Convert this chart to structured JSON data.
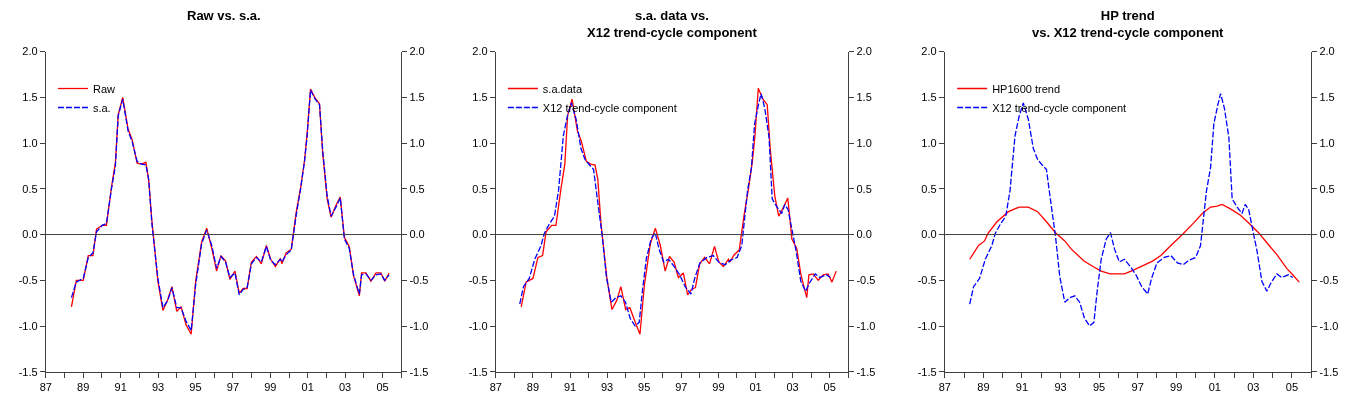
{
  "chart_data": [
    {
      "type": "line",
      "title": "Raw vs. s.a.",
      "legend": "top left",
      "xlim": [
        1987,
        2006
      ],
      "ylim": [
        -1.5,
        2.0
      ],
      "y2lim": [
        -1.5,
        2.0
      ],
      "xticks": [
        {
          "value": 1987,
          "label": "87"
        },
        {
          "value": 1988,
          "label": null
        },
        {
          "value": 1989,
          "label": "89"
        },
        {
          "value": 1990,
          "label": null
        },
        {
          "value": 1991,
          "label": "91"
        },
        {
          "value": 1992,
          "label": null
        },
        {
          "value": 1993,
          "label": "93"
        },
        {
          "value": 1994,
          "label": null
        },
        {
          "value": 1995,
          "label": "95"
        },
        {
          "value": 1996,
          "label": null
        },
        {
          "value": 1997,
          "label": "97"
        },
        {
          "value": 1998,
          "label": null
        },
        {
          "value": 1999,
          "label": "99"
        },
        {
          "value": 2000,
          "label": null
        },
        {
          "value": 2001,
          "label": "01"
        },
        {
          "value": 2002,
          "label": null
        },
        {
          "value": 2003,
          "label": "03"
        },
        {
          "value": 2004,
          "label": null
        },
        {
          "value": 2005,
          "label": "05"
        },
        {
          "value": 2006,
          "label": null
        }
      ],
      "yticks": [
        {
          "value": -1.5,
          "label": "-1.5"
        },
        {
          "value": -1.0,
          "label": "-1.0"
        },
        {
          "value": -0.5,
          "label": "-0.5"
        },
        {
          "value": 0,
          "label": "0.0"
        },
        {
          "value": 0.5,
          "label": "0.5"
        },
        {
          "value": 1.0,
          "label": "1.0"
        },
        {
          "value": 1.5,
          "label": "1.5"
        },
        {
          "value": 2.0,
          "label": "2.0"
        }
      ],
      "y2ticks": [
        {
          "value": -1.5,
          "label": "-1.5"
        },
        {
          "value": -1.0,
          "label": "-1.0"
        },
        {
          "value": -0.5,
          "label": "-0.5"
        },
        {
          "value": 0,
          "label": "0.0"
        },
        {
          "value": 0.5,
          "label": "0.5"
        },
        {
          "value": 1.0,
          "label": "1.0"
        },
        {
          "value": 1.5,
          "label": "1.5"
        },
        {
          "value": 2.0,
          "label": "2.0"
        }
      ],
      "ref_lines": [
        {
          "axis": "y",
          "value": 0,
          "color": "#404040"
        }
      ],
      "series": [
        {
          "name": "Raw",
          "color": "#ff0000",
          "line_style": "solid",
          "x": [
            1988.37,
            1988.63,
            1989.0,
            1989.27,
            1989.52,
            1989.71,
            1990.01,
            1990.24,
            1990.51,
            1990.72,
            1990.87,
            1991.11,
            1991.4,
            1991.61,
            1991.88,
            1992.11,
            1992.35,
            1992.5,
            1992.67,
            1992.99,
            1993.26,
            1993.52,
            1993.74,
            1994.0,
            1994.23,
            1994.5,
            1994.77,
            1995.01,
            1995.33,
            1995.6,
            1995.87,
            1996.13,
            1996.36,
            1996.61,
            1996.84,
            1997.11,
            1997.34,
            1997.55,
            1997.76,
            1997.99,
            1998.26,
            1998.52,
            1998.79,
            1999.02,
            1999.27,
            1999.54,
            1999.62,
            1999.85,
            2000.12,
            2000.39,
            2000.62,
            2000.83,
            2000.97,
            2001.15,
            2001.4,
            2001.63,
            2001.8,
            2002.04,
            2002.25,
            2002.51,
            2002.74,
            2002.96,
            2003.22,
            2003.45,
            2003.76,
            2003.88,
            2004.11,
            2004.38,
            2004.65,
            2004.91,
            2005.12,
            2005.35
          ],
          "values": [
            -0.79,
            -0.5,
            -0.5,
            -0.23,
            -0.23,
            0.06,
            0.1,
            0.1,
            0.52,
            0.79,
            1.31,
            1.5,
            1.15,
            1.04,
            0.78,
            0.77,
            0.79,
            0.59,
            0.15,
            -0.51,
            -0.83,
            -0.71,
            -0.57,
            -0.84,
            -0.79,
            -0.99,
            -1.09,
            -0.51,
            -0.08,
            0.07,
            -0.15,
            -0.4,
            -0.23,
            -0.29,
            -0.49,
            -0.4,
            -0.64,
            -0.59,
            -0.59,
            -0.3,
            -0.24,
            -0.32,
            -0.12,
            -0.27,
            -0.35,
            -0.26,
            -0.32,
            -0.2,
            -0.16,
            0.25,
            0.51,
            0.81,
            1.11,
            1.59,
            1.49,
            1.43,
            0.89,
            0.39,
            0.19,
            0.32,
            0.41,
            -0.03,
            -0.13,
            -0.45,
            -0.67,
            -0.42,
            -0.42,
            -0.51,
            -0.42,
            -0.42,
            -0.51,
            -0.42
          ]
        },
        {
          "name": "s.a.",
          "color": "#0000ff",
          "line_style": "dashed",
          "x": [
            1988.37,
            1988.63,
            1989.0,
            1989.27,
            1989.52,
            1989.71,
            1990.01,
            1990.24,
            1990.51,
            1990.72,
            1990.87,
            1991.11,
            1991.4,
            1991.61,
            1991.88,
            1992.11,
            1992.35,
            1992.5,
            1992.67,
            1992.99,
            1993.26,
            1993.52,
            1993.74,
            1994.0,
            1994.23,
            1994.5,
            1994.77,
            1995.01,
            1995.33,
            1995.6,
            1995.87,
            1996.13,
            1996.36,
            1996.61,
            1996.84,
            1997.11,
            1997.34,
            1997.55,
            1997.76,
            1997.99,
            1998.26,
            1998.52,
            1998.79,
            1999.02,
            1999.27,
            1999.54,
            1999.62,
            1999.85,
            2000.12,
            2000.39,
            2000.62,
            2000.83,
            2000.97,
            2001.15,
            2001.4,
            2001.63,
            2001.8,
            2002.04,
            2002.25,
            2002.51,
            2002.74,
            2002.96,
            2003.22,
            2003.45,
            2003.76,
            2003.88,
            2004.11,
            2004.38,
            2004.65,
            2004.91,
            2005.12,
            2005.35
          ],
          "values": [
            -0.69,
            -0.52,
            -0.48,
            -0.25,
            -0.2,
            0.03,
            0.1,
            0.12,
            0.5,
            0.75,
            1.3,
            1.48,
            1.13,
            1.02,
            0.8,
            0.77,
            0.76,
            0.6,
            0.12,
            -0.48,
            -0.8,
            -0.72,
            -0.58,
            -0.8,
            -0.8,
            -0.95,
            -1.05,
            -0.55,
            -0.1,
            0.05,
            -0.12,
            -0.37,
            -0.24,
            -0.3,
            -0.47,
            -0.42,
            -0.66,
            -0.6,
            -0.58,
            -0.32,
            -0.25,
            -0.3,
            -0.13,
            -0.28,
            -0.33,
            -0.27,
            -0.3,
            -0.22,
            -0.17,
            0.22,
            0.5,
            0.8,
            1.08,
            1.58,
            1.48,
            1.42,
            0.92,
            0.42,
            0.2,
            0.3,
            0.4,
            -0.05,
            -0.15,
            -0.44,
            -0.65,
            -0.44,
            -0.43,
            -0.5,
            -0.44,
            -0.43,
            -0.5,
            -0.44
          ]
        }
      ]
    },
    {
      "type": "line",
      "title": "s.a. data vs.\nX12 trend-cycle component",
      "legend": "top left",
      "xlim": [
        1987,
        2006
      ],
      "ylim": [
        -1.5,
        2.0
      ],
      "y2lim": [
        -1.5,
        2.0
      ],
      "xticks": [
        {
          "value": 1987,
          "label": "87"
        },
        {
          "value": 1988,
          "label": null
        },
        {
          "value": 1989,
          "label": "89"
        },
        {
          "value": 1990,
          "label": null
        },
        {
          "value": 1991,
          "label": "91"
        },
        {
          "value": 1992,
          "label": null
        },
        {
          "value": 1993,
          "label": "93"
        },
        {
          "value": 1994,
          "label": null
        },
        {
          "value": 1995,
          "label": "95"
        },
        {
          "value": 1996,
          "label": null
        },
        {
          "value": 1997,
          "label": "97"
        },
        {
          "value": 1998,
          "label": null
        },
        {
          "value": 1999,
          "label": "99"
        },
        {
          "value": 2000,
          "label": null
        },
        {
          "value": 2001,
          "label": "01"
        },
        {
          "value": 2002,
          "label": null
        },
        {
          "value": 2003,
          "label": "03"
        },
        {
          "value": 2004,
          "label": null
        },
        {
          "value": 2005,
          "label": "05"
        },
        {
          "value": 2006,
          "label": null
        }
      ],
      "yticks": [
        {
          "value": -1.5,
          "label": "-1.5"
        },
        {
          "value": -1.0,
          "label": "-1.0"
        },
        {
          "value": -0.5,
          "label": "-0.5"
        },
        {
          "value": 0,
          "label": "0.0"
        },
        {
          "value": 0.5,
          "label": "0.5"
        },
        {
          "value": 1.0,
          "label": "1.0"
        },
        {
          "value": 1.5,
          "label": "1.5"
        },
        {
          "value": 2.0,
          "label": "2.0"
        }
      ],
      "y2ticks": [
        {
          "value": -1.5,
          "label": "-1.5"
        },
        {
          "value": -1.0,
          "label": "-1.0"
        },
        {
          "value": -0.5,
          "label": "-0.5"
        },
        {
          "value": 0,
          "label": "0.0"
        },
        {
          "value": 0.5,
          "label": "0.5"
        },
        {
          "value": 1.0,
          "label": "1.0"
        },
        {
          "value": 1.5,
          "label": "1.5"
        },
        {
          "value": 2.0,
          "label": "2.0"
        }
      ],
      "ref_lines": [
        {
          "axis": "y",
          "value": 0,
          "color": "#404040"
        }
      ],
      "series": [
        {
          "name": "s.a.data",
          "color": "#ff0000",
          "line_style": "solid",
          "x": [
            1988.37,
            1988.63,
            1989.0,
            1989.27,
            1989.52,
            1989.71,
            1990.01,
            1990.24,
            1990.51,
            1990.72,
            1990.87,
            1991.11,
            1991.4,
            1991.61,
            1991.88,
            1992.11,
            1992.35,
            1992.5,
            1992.67,
            1992.99,
            1993.26,
            1993.52,
            1993.74,
            1994.0,
            1994.23,
            1994.5,
            1994.77,
            1995.01,
            1995.33,
            1995.6,
            1995.87,
            1996.13,
            1996.36,
            1996.61,
            1996.84,
            1997.11,
            1997.34,
            1997.55,
            1997.76,
            1997.99,
            1998.26,
            1998.52,
            1998.79,
            1999.02,
            1999.27,
            1999.54,
            1999.62,
            1999.85,
            2000.12,
            2000.39,
            2000.62,
            2000.83,
            2000.97,
            2001.15,
            2001.4,
            2001.63,
            2001.8,
            2002.04,
            2002.25,
            2002.51,
            2002.74,
            2002.96,
            2003.22,
            2003.45,
            2003.76,
            2003.88,
            2004.11,
            2004.38,
            2004.65,
            2004.91,
            2005.12,
            2005.35
          ],
          "values": [
            -0.79,
            -0.52,
            -0.48,
            -0.25,
            -0.23,
            0.03,
            0.1,
            0.1,
            0.5,
            0.77,
            1.3,
            1.48,
            1.13,
            1.02,
            0.8,
            0.77,
            0.76,
            0.6,
            0.12,
            -0.48,
            -0.82,
            -0.72,
            -0.57,
            -0.82,
            -0.8,
            -0.95,
            -1.09,
            -0.55,
            -0.1,
            0.07,
            -0.12,
            -0.4,
            -0.24,
            -0.3,
            -0.47,
            -0.42,
            -0.66,
            -0.6,
            -0.58,
            -0.32,
            -0.25,
            -0.32,
            -0.13,
            -0.3,
            -0.35,
            -0.27,
            -0.3,
            -0.22,
            -0.17,
            0.22,
            0.5,
            0.8,
            1.08,
            1.6,
            1.48,
            1.42,
            0.92,
            0.42,
            0.2,
            0.3,
            0.4,
            -0.05,
            -0.15,
            -0.44,
            -0.69,
            -0.44,
            -0.43,
            -0.5,
            -0.44,
            -0.43,
            -0.52,
            -0.4
          ]
        },
        {
          "name": "X12 trend-cycle component",
          "color": "#0000ff",
          "line_style": "dashed",
          "x": [
            1988.29,
            1988.49,
            1988.8,
            1989.1,
            1989.44,
            1989.61,
            1989.87,
            1990.16,
            1990.38,
            1990.64,
            1990.85,
            1991.07,
            1991.33,
            1991.59,
            1991.81,
            1992.05,
            1992.27,
            1992.53,
            1992.74,
            1992.96,
            1993.22,
            1993.48,
            1993.74,
            1993.99,
            1994.25,
            1994.51,
            1994.73,
            1994.9,
            1995.11,
            1995.37,
            1995.59,
            1995.8,
            1996.05,
            1996.31,
            1996.62,
            1996.91,
            1997.21,
            1997.52,
            1997.72,
            1998.0,
            1998.38,
            1998.72,
            1999.06,
            1999.37,
            1999.66,
            2000.01,
            2000.26,
            2000.57,
            2000.78,
            2000.95,
            2001.16,
            2001.3,
            2001.5,
            2001.73,
            2001.9,
            2002.16,
            2002.41,
            2002.58,
            2002.76,
            2002.93,
            2003.19,
            2003.44,
            2003.7,
            2003.91,
            2004.22,
            2004.47,
            2004.82,
            2005.04
          ],
          "values": [
            -0.76,
            -0.57,
            -0.48,
            -0.27,
            -0.12,
            0.01,
            0.11,
            0.2,
            0.48,
            1.08,
            1.29,
            1.44,
            1.26,
            0.94,
            0.82,
            0.76,
            0.71,
            0.3,
            -0.02,
            -0.46,
            -0.74,
            -0.69,
            -0.67,
            -0.74,
            -0.92,
            -1.0,
            -0.96,
            -0.62,
            -0.27,
            -0.05,
            0.02,
            -0.16,
            -0.3,
            -0.27,
            -0.35,
            -0.44,
            -0.57,
            -0.65,
            -0.48,
            -0.31,
            -0.25,
            -0.23,
            -0.31,
            -0.33,
            -0.28,
            -0.25,
            -0.12,
            0.48,
            0.73,
            1.21,
            1.42,
            1.54,
            1.38,
            1.06,
            0.39,
            0.3,
            0.23,
            0.33,
            0.27,
            0.09,
            -0.18,
            -0.51,
            -0.62,
            -0.53,
            -0.43,
            -0.47,
            -0.44,
            -0.47
          ]
        }
      ]
    },
    {
      "type": "line",
      "title": "HP trend\nvs. X12 trend-cycle component",
      "legend": "top left",
      "xlim": [
        1987,
        2006
      ],
      "ylim": [
        -1.5,
        2.0
      ],
      "y2lim": [
        -1.5,
        2.0
      ],
      "xticks": [
        {
          "value": 1987,
          "label": "87"
        },
        {
          "value": 1988,
          "label": null
        },
        {
          "value": 1989,
          "label": "89"
        },
        {
          "value": 1990,
          "label": null
        },
        {
          "value": 1991,
          "label": "91"
        },
        {
          "value": 1992,
          "label": null
        },
        {
          "value": 1993,
          "label": "93"
        },
        {
          "value": 1994,
          "label": null
        },
        {
          "value": 1995,
          "label": "95"
        },
        {
          "value": 1996,
          "label": null
        },
        {
          "value": 1997,
          "label": "97"
        },
        {
          "value": 1998,
          "label": null
        },
        {
          "value": 1999,
          "label": "99"
        },
        {
          "value": 2000,
          "label": null
        },
        {
          "value": 2001,
          "label": "01"
        },
        {
          "value": 2002,
          "label": null
        },
        {
          "value": 2003,
          "label": "03"
        },
        {
          "value": 2004,
          "label": null
        },
        {
          "value": 2005,
          "label": "05"
        },
        {
          "value": 2006,
          "label": null
        }
      ],
      "yticks": [
        {
          "value": -1.5,
          "label": "-1.5"
        },
        {
          "value": -1.0,
          "label": "-1.0"
        },
        {
          "value": -0.5,
          "label": "-0.5"
        },
        {
          "value": 0,
          "label": "0.0"
        },
        {
          "value": 0.5,
          "label": "0.5"
        },
        {
          "value": 1.0,
          "label": "1.0"
        },
        {
          "value": 1.5,
          "label": "1.5"
        },
        {
          "value": 2.0,
          "label": "2.0"
        }
      ],
      "y2ticks": [
        {
          "value": -1.5,
          "label": "-1.5"
        },
        {
          "value": -1.0,
          "label": "-1.0"
        },
        {
          "value": -0.5,
          "label": "-0.5"
        },
        {
          "value": 0,
          "label": "0.0"
        },
        {
          "value": 0.5,
          "label": "0.5"
        },
        {
          "value": 1.0,
          "label": "1.0"
        },
        {
          "value": 1.5,
          "label": "1.5"
        },
        {
          "value": 2.0,
          "label": "2.0"
        }
      ],
      "ref_lines": [
        {
          "axis": "y",
          "value": 0,
          "color": "#404040"
        }
      ],
      "series": [
        {
          "name": "HP1600 trend",
          "color": "#ff0000",
          "line_style": "solid",
          "x": [
            1988.29,
            1988.75,
            1989.06,
            1989.23,
            1989.7,
            1990.3,
            1990.85,
            1991.33,
            1991.81,
            1992.27,
            1992.74,
            1993.22,
            1993.56,
            1994.22,
            1994.68,
            1995.11,
            1995.57,
            1996.31,
            1996.66,
            1997.17,
            1997.77,
            1998.2,
            1998.72,
            1999.32,
            1999.92,
            2000.35,
            2000.78,
            2001.12,
            2001.38,
            2001.81,
            2002.33,
            2002.84,
            2003.27,
            2003.7,
            2004.22,
            2004.73,
            2005.04,
            2005.38
          ],
          "values": [
            -0.27,
            -0.12,
            -0.07,
            0.01,
            0.14,
            0.25,
            0.3,
            0.3,
            0.25,
            0.14,
            0.02,
            -0.07,
            -0.16,
            -0.29,
            -0.35,
            -0.4,
            -0.43,
            -0.43,
            -0.4,
            -0.35,
            -0.29,
            -0.23,
            -0.12,
            0.0,
            0.13,
            0.23,
            0.3,
            0.31,
            0.33,
            0.28,
            0.21,
            0.11,
            0.02,
            -0.09,
            -0.22,
            -0.37,
            -0.44,
            -0.52
          ]
        },
        {
          "name": "X12 trend-cycle component",
          "color": "#0000ff",
          "line_style": "dashed",
          "x": [
            1988.29,
            1988.49,
            1988.8,
            1989.1,
            1989.44,
            1989.61,
            1989.87,
            1990.16,
            1990.38,
            1990.64,
            1990.85,
            1991.07,
            1991.33,
            1991.59,
            1991.81,
            1992.05,
            1992.27,
            1992.53,
            1992.74,
            1992.96,
            1993.22,
            1993.48,
            1993.74,
            1993.99,
            1994.25,
            1994.51,
            1994.73,
            1994.9,
            1995.11,
            1995.37,
            1995.59,
            1995.8,
            1996.05,
            1996.31,
            1996.62,
            1996.91,
            1997.21,
            1997.52,
            1997.72,
            1998.0,
            1998.38,
            1998.72,
            1999.06,
            1999.37,
            1999.66,
            2000.01,
            2000.26,
            2000.57,
            2000.78,
            2000.95,
            2001.16,
            2001.3,
            2001.5,
            2001.73,
            2001.9,
            2002.16,
            2002.41,
            2002.58,
            2002.76,
            2002.93,
            2003.19,
            2003.44,
            2003.7,
            2003.91,
            2004.22,
            2004.47,
            2004.82,
            2005.04
          ],
          "values": [
            -0.76,
            -0.57,
            -0.48,
            -0.27,
            -0.12,
            0.01,
            0.11,
            0.2,
            0.48,
            1.08,
            1.29,
            1.44,
            1.26,
            0.94,
            0.82,
            0.76,
            0.71,
            0.3,
            -0.02,
            -0.46,
            -0.74,
            -0.69,
            -0.67,
            -0.74,
            -0.92,
            -1.0,
            -0.96,
            -0.62,
            -0.27,
            -0.05,
            0.02,
            -0.16,
            -0.3,
            -0.27,
            -0.35,
            -0.44,
            -0.57,
            -0.65,
            -0.48,
            -0.31,
            -0.25,
            -0.23,
            -0.31,
            -0.33,
            -0.28,
            -0.25,
            -0.12,
            0.48,
            0.73,
            1.21,
            1.42,
            1.54,
            1.38,
            1.06,
            0.39,
            0.3,
            0.23,
            0.33,
            0.27,
            0.09,
            -0.18,
            -0.51,
            -0.62,
            -0.53,
            -0.43,
            -0.47,
            -0.44,
            -0.47
          ]
        }
      ]
    }
  ]
}
